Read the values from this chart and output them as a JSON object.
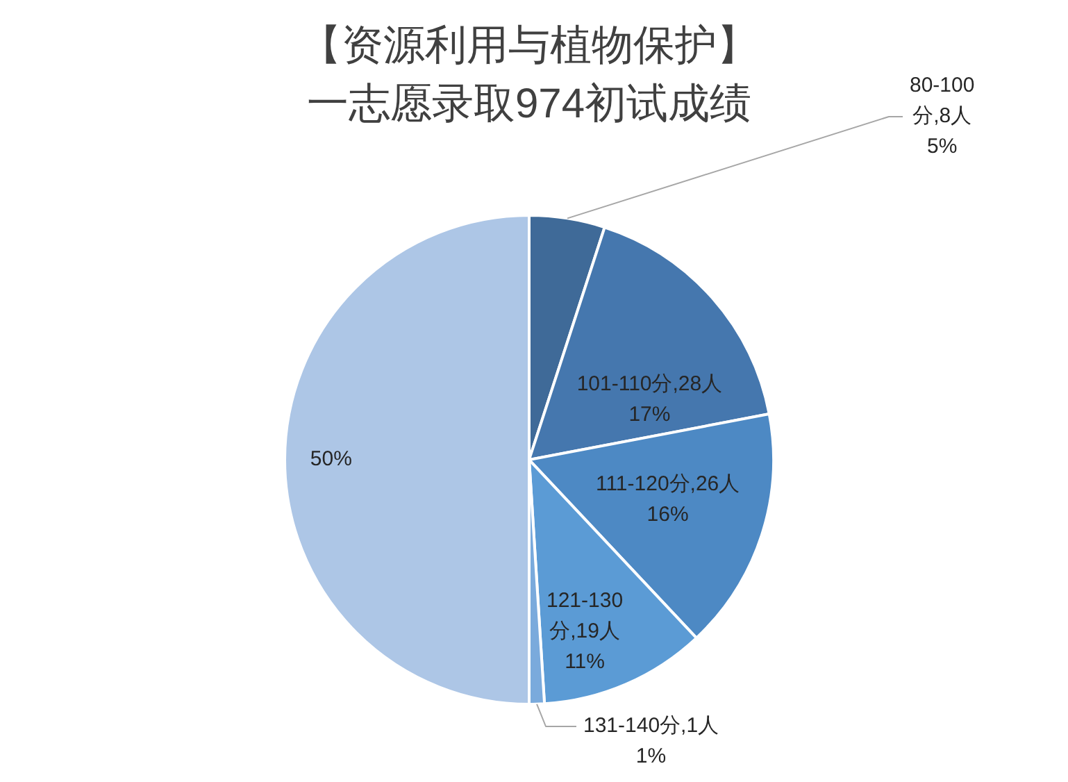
{
  "chart_data": {
    "type": "pie",
    "title": "【资源利用与植物保护】一志愿录取974初试成绩",
    "categories": [
      "80-100分,8人",
      "101-110分,28人",
      "111-120分,26人",
      "121-130分,19人",
      "131-140分,1人",
      null
    ],
    "values": [
      5,
      17,
      16,
      11,
      1,
      50
    ],
    "colors": [
      "#3f6a98",
      "#4577ae",
      "#4d89c4",
      "#5b9bd5",
      "#7aaadc",
      "#adc6e6"
    ],
    "value_labels": [
      "5%",
      "17%",
      "16%",
      "11%",
      "1%",
      "50%"
    ],
    "legend": false
  }
}
